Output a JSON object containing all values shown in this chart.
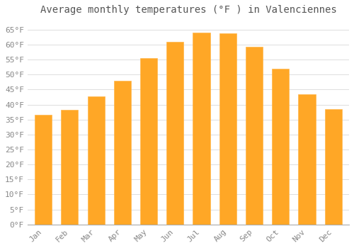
{
  "title": "Average monthly temperatures (°F ) in Valenciennes",
  "months": [
    "Jan",
    "Feb",
    "Mar",
    "Apr",
    "May",
    "Jun",
    "Jul",
    "Aug",
    "Sep",
    "Oct",
    "Nov",
    "Dec"
  ],
  "values": [
    36.5,
    38.3,
    42.8,
    48.0,
    55.4,
    61.0,
    64.0,
    63.8,
    59.2,
    52.0,
    43.5,
    38.5
  ],
  "bar_color": "#FFA726",
  "bar_edge_color": "#FFB74D",
  "background_color": "#ffffff",
  "grid_color": "#dddddd",
  "ylim": [
    0,
    68
  ],
  "yticks": [
    0,
    5,
    10,
    15,
    20,
    25,
    30,
    35,
    40,
    45,
    50,
    55,
    60,
    65
  ],
  "title_fontsize": 10,
  "tick_fontsize": 8,
  "font_color": "#888888",
  "title_color": "#555555"
}
